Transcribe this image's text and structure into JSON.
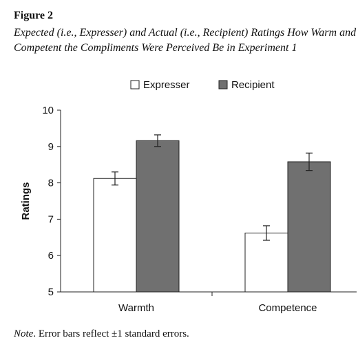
{
  "figure": {
    "label": "Figure 2",
    "title": "Expected (i.e., Expresser) and Actual (i.e., Recipient) Ratings How Warm and Competent the Compliments Were Perceived Be in Experiment 1"
  },
  "note": {
    "lead": "Note",
    "text": ". Error bars reflect ±1 standard errors."
  },
  "chart_data": {
    "type": "bar",
    "categories": [
      "Warmth",
      "Competence"
    ],
    "series": [
      {
        "name": "Expresser",
        "values": [
          8.12,
          6.62
        ],
        "errors": [
          0.18,
          0.2
        ],
        "color": "#ffffff"
      },
      {
        "name": "Recipient",
        "values": [
          9.16,
          8.58
        ],
        "errors": [
          0.16,
          0.24
        ],
        "color": "#707070"
      }
    ],
    "ylabel": "Ratings",
    "xlabel": "",
    "ylim": [
      5,
      10
    ],
    "yticks": [
      5,
      6,
      7,
      8,
      9,
      10
    ],
    "legend_position": "top-center",
    "grid": false
  }
}
